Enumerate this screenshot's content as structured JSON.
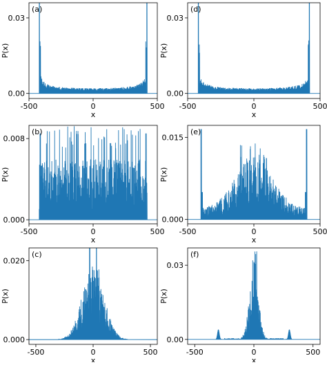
{
  "chart_data": [
    {
      "id": "a",
      "type": "bar",
      "panel_label": "(a)",
      "xlabel": "x",
      "ylabel": "P(x)",
      "xlim": [
        -500,
        500
      ],
      "ylim": [
        -0.002,
        0.036
      ],
      "xticks": [
        "-500",
        "0",
        "500"
      ],
      "yticks": [
        "0.00",
        "0.03"
      ],
      "ytick_values": [
        0.0,
        0.03
      ],
      "color": "#1f77b4",
      "description_values": {
        "support": [
          -420,
          420
        ],
        "edge_peaks": [
          {
            "x": -420,
            "y": 0.036
          },
          {
            "x": 420,
            "y": 0.036
          }
        ],
        "center_level": 0.0025,
        "profile": "arcsine"
      }
    },
    {
      "id": "b",
      "type": "bar",
      "panel_label": "(b)",
      "xlabel": "x",
      "ylabel": "P(x)",
      "xlim": [
        -500,
        500
      ],
      "ylim": [
        -0.0004,
        0.0093
      ],
      "xticks": [
        "-500",
        "0",
        "500"
      ],
      "yticks": [
        "0.000",
        "0.008"
      ],
      "ytick_values": [
        0.0,
        0.008
      ],
      "color": "#1f77b4",
      "description_values": {
        "support": [
          -420,
          420
        ],
        "typical_level": 0.0035,
        "max_peak": 0.0093,
        "edge_peaks": [
          {
            "x": -412,
            "y": 0.0085
          },
          {
            "x": 412,
            "y": 0.0085
          }
        ],
        "profile": "uniform-random"
      }
    },
    {
      "id": "c",
      "type": "bar",
      "panel_label": "(c)",
      "xlabel": "x",
      "ylabel": "P(x)",
      "xlim": [
        -560,
        560
      ],
      "ylim": [
        -0.0012,
        0.0232
      ],
      "xticks": [
        "-500",
        "0",
        "500"
      ],
      "yticks": [
        "0.000",
        "0.020"
      ],
      "ytick_values": [
        0.0,
        0.02
      ],
      "color": "#1f77b4",
      "description_values": {
        "support": [
          -300,
          300
        ],
        "center_peaks": [
          {
            "x": -30,
            "y": 0.0232
          },
          {
            "x": 30,
            "y": 0.0232
          }
        ],
        "profile": "gaussian-localized"
      }
    },
    {
      "id": "d",
      "type": "bar",
      "panel_label": "(d)",
      "xlabel": "x",
      "ylabel": "P(x)",
      "xlim": [
        -500,
        500
      ],
      "ylim": [
        -0.002,
        0.036
      ],
      "xticks": [
        "-500",
        "0",
        "500"
      ],
      "yticks": [
        "0.00",
        "0.03"
      ],
      "ytick_values": [
        0.0,
        0.03
      ],
      "color": "#1f77b4",
      "description_values": {
        "support": [
          -420,
          420
        ],
        "edge_peaks": [
          {
            "x": -420,
            "y": 0.036
          },
          {
            "x": 420,
            "y": 0.036
          }
        ],
        "center_level": 0.0025,
        "profile": "arcsine"
      }
    },
    {
      "id": "e",
      "type": "bar",
      "panel_label": "(e)",
      "xlabel": "x",
      "ylabel": "P(x)",
      "xlim": [
        -500,
        500
      ],
      "ylim": [
        -0.0008,
        0.0172
      ],
      "xticks": [
        "-500",
        "0",
        "500"
      ],
      "yticks": [
        "0.000",
        "0.015"
      ],
      "ytick_values": [
        0.0,
        0.015
      ],
      "color": "#1f77b4",
      "description_values": {
        "support": [
          -400,
          400
        ],
        "edge_peaks": [
          {
            "x": -398,
            "y": 0.0165
          },
          {
            "x": 398,
            "y": 0.0165
          }
        ],
        "center_level": 0.006,
        "profile": "edges-plus-center"
      }
    },
    {
      "id": "f",
      "type": "bar",
      "panel_label": "(f)",
      "xlabel": "x",
      "ylabel": "P(x)",
      "xlim": [
        -560,
        560
      ],
      "ylim": [
        -0.002,
        0.037
      ],
      "xticks": [
        "-500",
        "0",
        "500"
      ],
      "yticks": [
        "0.00",
        "0.03"
      ],
      "ytick_values": [
        0.0,
        0.03
      ],
      "color": "#1f77b4",
      "description_values": {
        "support": [
          -320,
          320
        ],
        "center_peak": {
          "x": 0,
          "y": 0.037
        },
        "side_bumps": [
          {
            "x": -300,
            "y": 0.004
          },
          {
            "x": 300,
            "y": 0.004
          }
        ],
        "profile": "localized-with-side-bumps"
      }
    }
  ]
}
